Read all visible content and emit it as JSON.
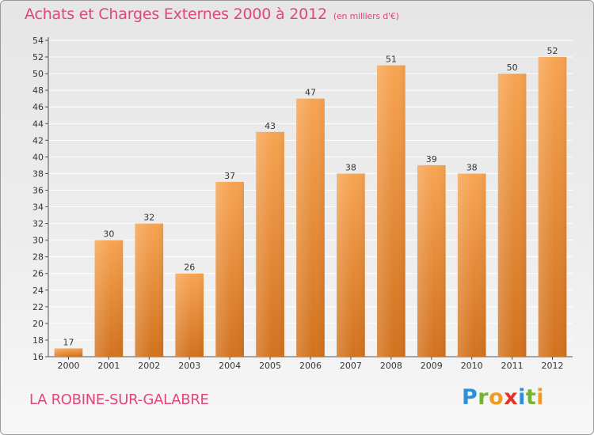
{
  "header": {
    "title": "Achats et Charges Externes 2000 à 2012",
    "subtitle": "(en milliers d'€)"
  },
  "footer": {
    "commune": "LA ROBINE-SUR-GALABRE",
    "logo_letters": [
      "P",
      "r",
      "o",
      "x",
      "i",
      "t",
      "i"
    ]
  },
  "colors": {
    "bar_light": "#f7a452",
    "bar_dark": "#d2721e",
    "title": "#e0457b",
    "grid": "#ffffff"
  },
  "chart_data": {
    "type": "bar",
    "title": "Achats et Charges Externes 2000 à 2012",
    "subtitle": "(en milliers d'€)",
    "categories": [
      "2000",
      "2001",
      "2002",
      "2003",
      "2004",
      "2005",
      "2006",
      "2007",
      "2008",
      "2009",
      "2010",
      "2011",
      "2012"
    ],
    "values": [
      17,
      30,
      32,
      26,
      37,
      43,
      47,
      38,
      51,
      39,
      38,
      50,
      52
    ],
    "ylim": [
      16,
      54
    ],
    "yticks": [
      16,
      18,
      20,
      22,
      24,
      26,
      28,
      30,
      32,
      34,
      36,
      38,
      40,
      42,
      44,
      46,
      48,
      50,
      52,
      54
    ],
    "grid": true,
    "data_labels": true
  }
}
